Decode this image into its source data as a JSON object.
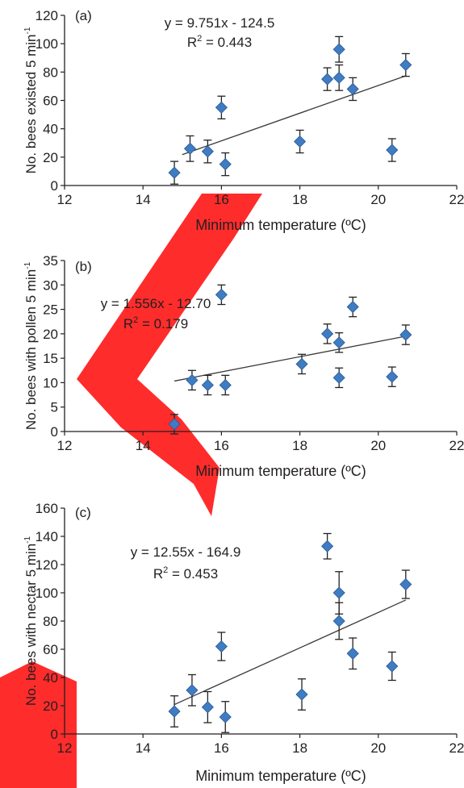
{
  "chart_data": [
    {
      "type": "scatter",
      "panel_label": "(a)",
      "xlabel": "Minimum temperature (ºC)",
      "ylabel": "No. bees existed 5 min",
      "ylabel_sup": "-1",
      "xlim": [
        12,
        22
      ],
      "ylim": [
        0,
        120
      ],
      "xticks": [
        12,
        14,
        16,
        18,
        20,
        22
      ],
      "yticks": [
        0,
        20,
        40,
        60,
        80,
        100,
        120
      ],
      "equation": "y = 9.751x - 124.5",
      "r2_prefix": "R",
      "r2_value": " = 0.443",
      "trendline": {
        "slope": 9.751,
        "intercept": -124.5,
        "x_range": [
          15.0,
          20.7
        ]
      },
      "points": [
        {
          "x": 14.8,
          "y": 9,
          "err": 8
        },
        {
          "x": 15.2,
          "y": 26,
          "err": 9
        },
        {
          "x": 15.65,
          "y": 24,
          "err": 8
        },
        {
          "x": 16.0,
          "y": 55,
          "err": 8
        },
        {
          "x": 16.1,
          "y": 15,
          "err": 8
        },
        {
          "x": 18.0,
          "y": 31,
          "err": 8
        },
        {
          "x": 18.7,
          "y": 75,
          "err": 8
        },
        {
          "x": 19.0,
          "y": 96,
          "err": 9
        },
        {
          "x": 19.0,
          "y": 76,
          "err": 9
        },
        {
          "x": 19.35,
          "y": 68,
          "err": 8
        },
        {
          "x": 20.35,
          "y": 25,
          "err": 8
        },
        {
          "x": 20.7,
          "y": 85,
          "err": 8
        }
      ]
    },
    {
      "type": "scatter",
      "panel_label": "(b)",
      "xlabel": "Minimum temperature (ºC)",
      "ylabel": "No. bees with pollen 5 min",
      "ylabel_sup": "-1",
      "xlim": [
        12,
        22
      ],
      "ylim": [
        0,
        35
      ],
      "xticks": [
        12,
        14,
        16,
        18,
        20,
        22
      ],
      "yticks": [
        0,
        5,
        10,
        15,
        20,
        25,
        30,
        35
      ],
      "equation": "y = 1.556x - 12.70",
      "r2_prefix": "R",
      "r2_value": " = 0.179",
      "trendline": {
        "slope": 1.556,
        "intercept": -12.7,
        "x_range": [
          14.8,
          20.7
        ]
      },
      "points": [
        {
          "x": 14.8,
          "y": 1.5,
          "err": 2
        },
        {
          "x": 15.25,
          "y": 10.5,
          "err": 2
        },
        {
          "x": 15.65,
          "y": 9.5,
          "err": 2
        },
        {
          "x": 16.0,
          "y": 28,
          "err": 2
        },
        {
          "x": 16.1,
          "y": 9.5,
          "err": 2
        },
        {
          "x": 18.05,
          "y": 13.8,
          "err": 2
        },
        {
          "x": 18.7,
          "y": 20,
          "err": 2
        },
        {
          "x": 19.0,
          "y": 18.2,
          "err": 2
        },
        {
          "x": 19.0,
          "y": 11,
          "err": 2
        },
        {
          "x": 19.35,
          "y": 25.5,
          "err": 2
        },
        {
          "x": 20.35,
          "y": 11.2,
          "err": 2
        },
        {
          "x": 20.7,
          "y": 19.8,
          "err": 2
        }
      ]
    },
    {
      "type": "scatter",
      "panel_label": "(c)",
      "xlabel": "Minimum temperature (ºC)",
      "ylabel": "No. bees with nectar 5 min",
      "ylabel_sup": "-1",
      "xlim": [
        12,
        22
      ],
      "ylim": [
        0,
        160
      ],
      "xticks": [
        12,
        14,
        16,
        18,
        20,
        22
      ],
      "yticks": [
        0,
        20,
        40,
        60,
        80,
        100,
        120,
        140,
        160
      ],
      "equation": "y = 12.55x - 164.9",
      "r2_prefix": "R",
      "r2_value": " = 0.453",
      "trendline": {
        "slope": 12.55,
        "intercept": -164.9,
        "x_range": [
          14.8,
          20.7
        ]
      },
      "points": [
        {
          "x": 14.8,
          "y": 16,
          "err": 11
        },
        {
          "x": 15.25,
          "y": 31,
          "err": 11
        },
        {
          "x": 15.65,
          "y": 19,
          "err": 11
        },
        {
          "x": 16.0,
          "y": 62,
          "err": 10
        },
        {
          "x": 16.1,
          "y": 12,
          "err": 11
        },
        {
          "x": 18.05,
          "y": 28,
          "err": 11
        },
        {
          "x": 18.7,
          "y": 133,
          "err": 9
        },
        {
          "x": 19.0,
          "y": 100,
          "err": 15
        },
        {
          "x": 19.0,
          "y": 80,
          "err": 13
        },
        {
          "x": 19.35,
          "y": 57,
          "err": 11
        },
        {
          "x": 20.35,
          "y": 48,
          "err": 10
        },
        {
          "x": 20.7,
          "y": 106,
          "err": 10
        }
      ]
    }
  ],
  "colors": {
    "marker": "#3f7cc1",
    "marker_edge": "#2a5a95",
    "axis": "#231f20",
    "trendline": "#3a3a3a",
    "watermark": "#ff1a1a"
  }
}
